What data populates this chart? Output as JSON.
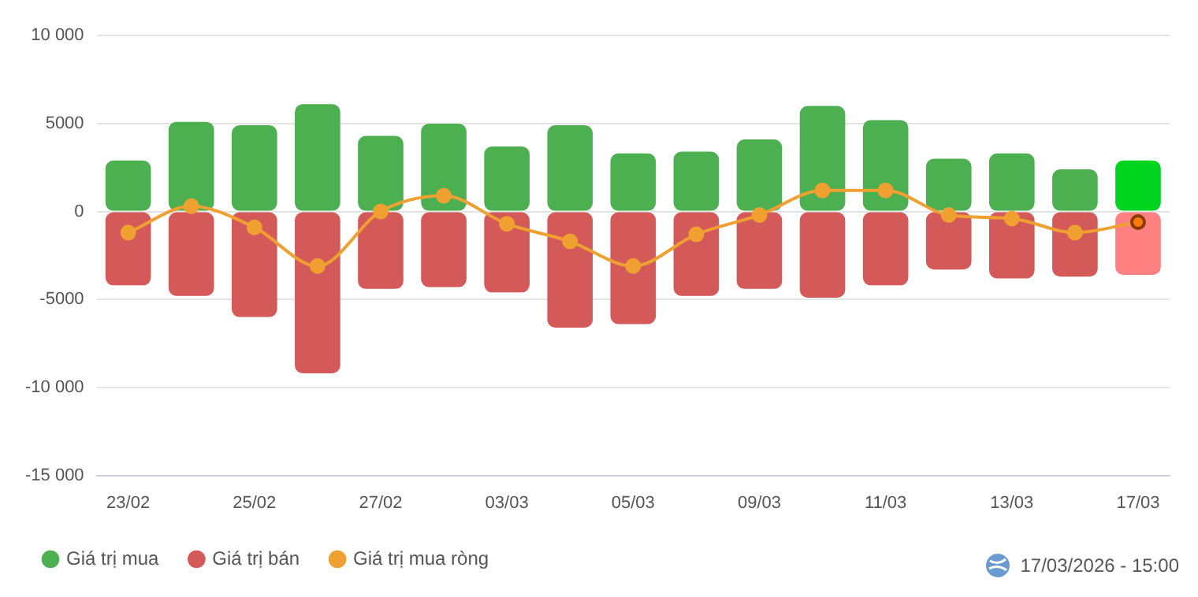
{
  "chart_data": {
    "type": "bar",
    "stacked": true,
    "categories": [
      "23/02",
      null,
      "25/02",
      null,
      "27/02",
      null,
      "03/03",
      null,
      "05/03",
      null,
      "09/03",
      null,
      "11/03",
      null,
      "13/03",
      null,
      "17/03"
    ],
    "series": [
      {
        "name": "Giá trị mua",
        "color": "#4caf50",
        "colors": [
          "#4caf50",
          "#4caf50",
          "#4caf50",
          "#4caf50",
          "#4caf50",
          "#4caf50",
          "#4caf50",
          "#4caf50",
          "#4caf50",
          "#4caf50",
          "#4caf50",
          "#4caf50",
          "#4caf50",
          "#4caf50",
          "#4caf50",
          "#4caf50",
          "#00d41e"
        ],
        "values": [
          2900,
          5100,
          4900,
          6100,
          4300,
          5000,
          3700,
          4900,
          3300,
          3400,
          4100,
          6000,
          5200,
          3000,
          3300,
          2400,
          2900
        ]
      },
      {
        "name": "Giá trị bán",
        "color": "#d45a5a",
        "colors": [
          "#d45a5a",
          "#d45a5a",
          "#d45a5a",
          "#d45a5a",
          "#d45a5a",
          "#d45a5a",
          "#d45a5a",
          "#d45a5a",
          "#d45a5a",
          "#d45a5a",
          "#d45a5a",
          "#d45a5a",
          "#d45a5a",
          "#d45a5a",
          "#d45a5a",
          "#d45a5a",
          "#ff8080"
        ],
        "values": [
          -4200,
          -4800,
          -6000,
          -9200,
          -4400,
          -4300,
          -4600,
          -6600,
          -6400,
          -4800,
          -4400,
          -4900,
          -4200,
          -3300,
          -3800,
          -3700,
          -3600
        ]
      },
      {
        "name": "Giá trị mua ròng",
        "type": "line",
        "color": "#f0a030",
        "colors": [
          "#f0a030",
          "#f0a030",
          "#f0a030",
          "#f0a030",
          "#f0a030",
          "#f0a030",
          "#f0a030",
          "#f0a030",
          "#f0a030",
          "#f0a030",
          "#f0a030",
          "#f0a030",
          "#f0a030",
          "#f0a030",
          "#f0a030",
          "#f0a030",
          "#ff7a00"
        ],
        "marker": "circle",
        "values": [
          -1200,
          300,
          -900,
          -3100,
          0,
          900,
          -700,
          -1700,
          -3100,
          -1300,
          -200,
          1200,
          1200,
          -200,
          -400,
          -1200,
          -600
        ]
      }
    ],
    "ylim": [
      -15000,
      10000
    ],
    "yticks": [
      {
        "value": -15000,
        "label": "-15 000"
      },
      {
        "value": -10000,
        "label": "-10 000"
      },
      -5000,
      0,
      5000,
      {
        "value": 10000,
        "label": "10 000"
      }
    ],
    "grid": "y",
    "legend": "bottom left",
    "annotations": [
      "17/03/2026 - 15:00"
    ]
  }
}
